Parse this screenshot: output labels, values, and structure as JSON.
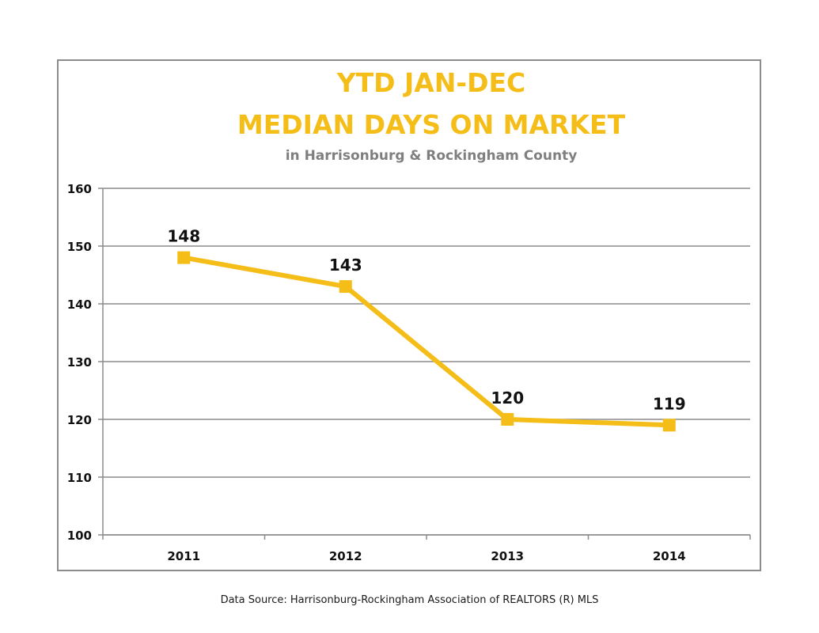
{
  "chart_data": {
    "type": "line",
    "title_line1": "YTD JAN-DEC",
    "title_line2": "MEDIAN DAYS ON MARKET",
    "subtitle": "in Harrisonburg  & Rockingham County",
    "categories": [
      "2011",
      "2012",
      "2013",
      "2014"
    ],
    "series": [
      {
        "values": [
          148,
          143,
          120,
          119
        ]
      }
    ],
    "data_labels": [
      "148",
      "143",
      "120",
      "119"
    ],
    "ylim": [
      100,
      160
    ],
    "yticks": [
      100,
      110,
      120,
      130,
      140,
      150,
      160
    ],
    "grid": true,
    "legend": "none",
    "colors": {
      "series": "#f5bd17",
      "title": "#f5bd17",
      "subtitle": "#7f7f7f",
      "grid": "#8c8c8c"
    }
  },
  "footer": {
    "source": "Data Source: Harrisonburg-Rockingham Association of REALTORS (R) MLS"
  }
}
